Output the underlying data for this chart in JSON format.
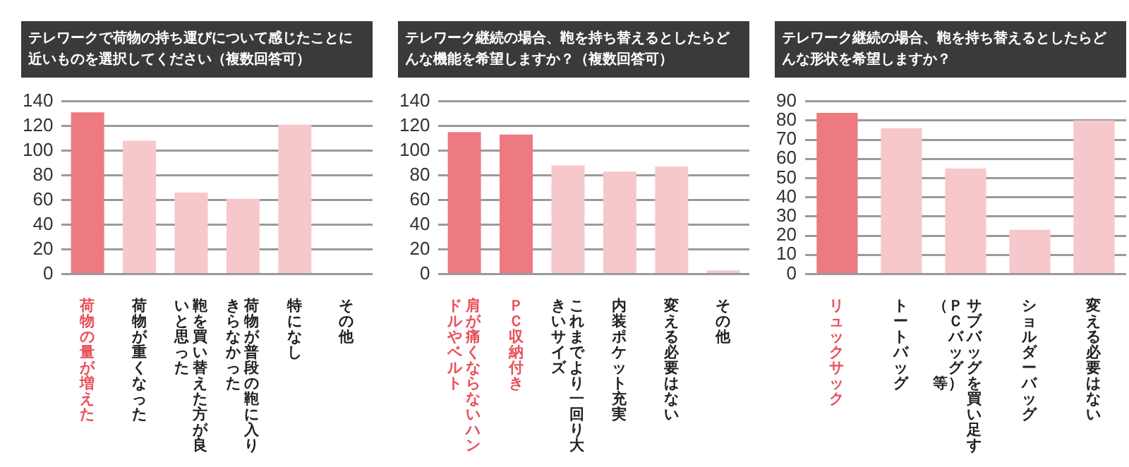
{
  "chart_data": [
    {
      "type": "bar",
      "title": "テレワークで荷物の持ち運びについて感じたことに近いものを選択してください（複数回答可）",
      "categories": [
        "荷物の量が増えた",
        "荷物が重くなった",
        "鞄を買い替えた方が良いと思った",
        "荷物が普段の鞄に入りきらなかった",
        "特になし",
        "その他"
      ],
      "values": [
        131,
        108,
        66,
        61,
        121,
        0
      ],
      "colors": [
        "#ec7a80",
        "#f6c8cb",
        "#f6c8cb",
        "#f6c8cb",
        "#f6c8cb",
        "#f6c8cb"
      ],
      "ylim": [
        0,
        140
      ],
      "yticks": [
        0,
        20,
        40,
        60,
        80,
        100,
        120,
        140
      ],
      "grid": "y"
    },
    {
      "type": "bar",
      "title": "テレワーク継続の場合、鞄を持ち替えるとしたらどんな機能を希望しますか？（複数回答可）",
      "categories": [
        "肩が痛くならないハンドルやベルト",
        "ＰＣ収納付き",
        "これまでより一回り大きいサイズ",
        "内装ポケット充実",
        "変える必要はない",
        "その他"
      ],
      "values": [
        115,
        113,
        88,
        83,
        87,
        3
      ],
      "colors": [
        "#ec7a80",
        "#ec7a80",
        "#f6c8cb",
        "#f6c8cb",
        "#f6c8cb",
        "#f6c8cb"
      ],
      "ylim": [
        0,
        140
      ],
      "yticks": [
        0,
        20,
        40,
        60,
        80,
        100,
        120,
        140
      ],
      "grid": "y"
    },
    {
      "type": "bar",
      "title": "テレワーク継続の場合、鞄を持ち替えるとしたらどんな形状を希望しますか？",
      "categories": [
        "リュックサック",
        "トートバッグ",
        "サブバッグを買い足す（ＰＣバッグ等）",
        "ショルダーバッグ",
        "変える必要はない"
      ],
      "values": [
        84,
        76,
        55,
        23,
        80
      ],
      "colors": [
        "#ec7a80",
        "#f6c8cb",
        "#f6c8cb",
        "#f6c8cb",
        "#f6c8cb"
      ],
      "ylim": [
        0,
        90
      ],
      "yticks": [
        0,
        10,
        20,
        30,
        40,
        50,
        60,
        70,
        80,
        90
      ],
      "grid": "y"
    }
  ]
}
